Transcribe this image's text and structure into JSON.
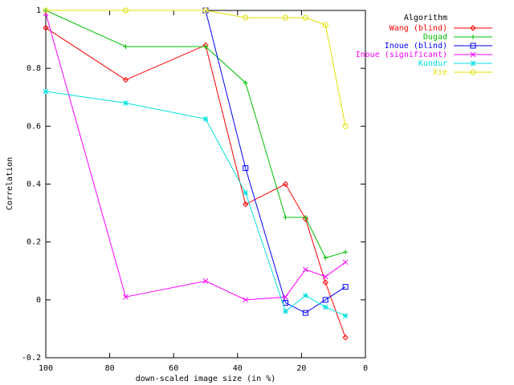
{
  "chart_data": {
    "type": "line",
    "x_label": "down-scaled image size (in %)",
    "y_label": "Correlation",
    "legend_title": "Algorithm",
    "legend_position": "top-right-outside",
    "x": [
      100,
      75,
      50,
      37.5,
      25,
      18.75,
      12.5,
      6.25
    ],
    "xlim": [
      100,
      0
    ],
    "xticks": [
      100,
      80,
      60,
      40,
      20,
      0
    ],
    "ylim": [
      -0.2,
      1
    ],
    "yticks": [
      -0.2,
      0,
      0.2,
      0.4,
      0.6,
      0.8,
      1
    ],
    "grid": false,
    "series": [
      {
        "name": "Wang (blind)",
        "color": "#ff0000",
        "marker": "diamond",
        "values": [
          0.94,
          0.76,
          0.88,
          0.33,
          0.4,
          0.28,
          0.06,
          -0.13
        ]
      },
      {
        "name": "Dugad",
        "color": "#00c000",
        "marker": "plus",
        "values": [
          1.0,
          0.875,
          0.875,
          0.75,
          0.285,
          0.285,
          0.145,
          0.165
        ]
      },
      {
        "name": "Inoue (blind)",
        "color": "#0000ff",
        "marker": "square",
        "values": [
          null,
          null,
          1.0,
          0.455,
          -0.01,
          -0.045,
          0.0,
          0.045
        ]
      },
      {
        "name": "Inoue (significant)",
        "color": "#ff00ff",
        "marker": "cross",
        "values": [
          0.99,
          0.01,
          0.065,
          0.0,
          0.01,
          0.105,
          0.08,
          0.13
        ]
      },
      {
        "name": "Kundur",
        "color": "#00e0e0",
        "marker": "star",
        "values": [
          0.72,
          0.68,
          0.625,
          0.37,
          -0.04,
          0.015,
          -0.025,
          -0.055
        ]
      },
      {
        "name": "Xie",
        "color": "#e0e000",
        "marker": "circle",
        "values": [
          1.0,
          1.0,
          1.0,
          0.975,
          0.975,
          0.975,
          0.95,
          0.6
        ]
      }
    ]
  }
}
